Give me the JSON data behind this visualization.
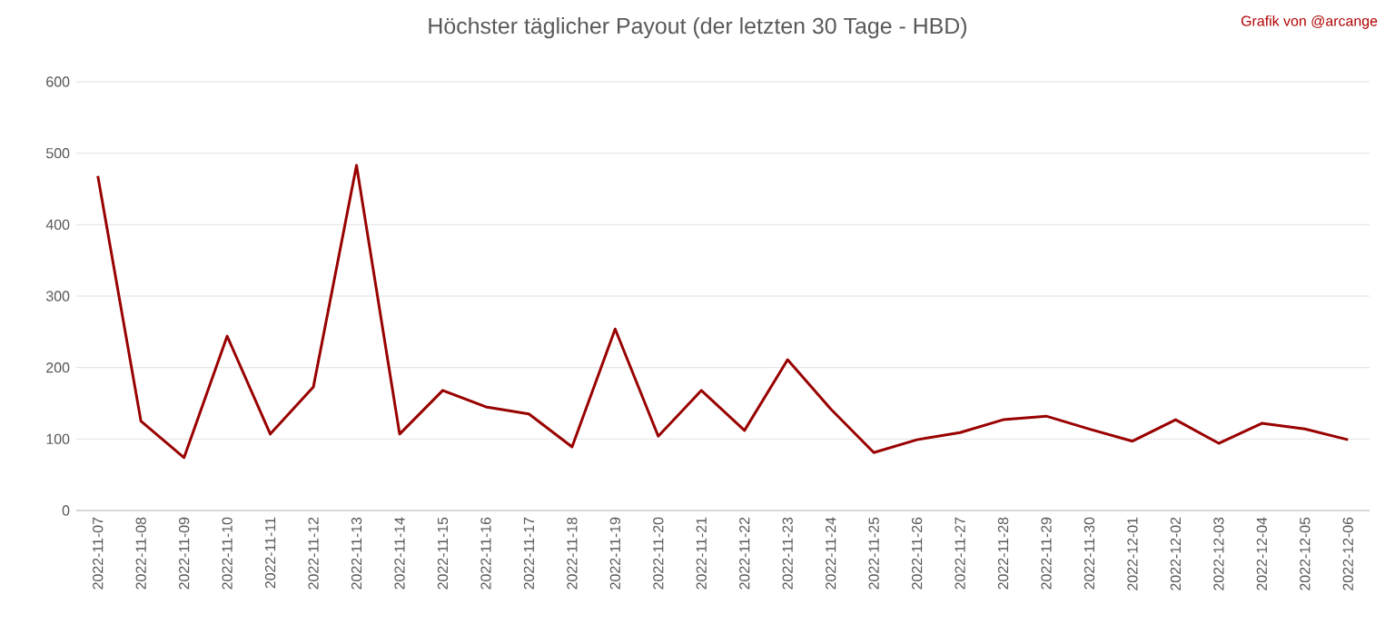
{
  "chart_data": {
    "type": "line",
    "title": "Höchster täglicher Payout (der letzten 30 Tage - HBD)",
    "annotations": [
      "Grafik von @arcange"
    ],
    "categories": [
      "2022-11-07",
      "2022-11-08",
      "2022-11-09",
      "2022-11-10",
      "2022-11-11",
      "2022-11-12",
      "2022-11-13",
      "2022-11-14",
      "2022-11-15",
      "2022-11-16",
      "2022-11-17",
      "2022-11-18",
      "2022-11-19",
      "2022-11-20",
      "2022-11-21",
      "2022-11-22",
      "2022-11-23",
      "2022-11-24",
      "2022-11-25",
      "2022-11-26",
      "2022-11-27",
      "2022-11-28",
      "2022-11-29",
      "2022-11-30",
      "2022-12-01",
      "2022-12-02",
      "2022-12-03",
      "2022-12-04",
      "2022-12-05",
      "2022-12-06"
    ],
    "series": [
      {
        "color": "#990000",
        "values": [
          468,
          125,
          74,
          244,
          107,
          173,
          483,
          107,
          168,
          145,
          135,
          89,
          254,
          104,
          168,
          112,
          211,
          142,
          81,
          99,
          109,
          127,
          132,
          114,
          97,
          127,
          94,
          122,
          114,
          99
        ]
      }
    ],
    "ylim": [
      0,
      600
    ],
    "yticks": [
      0,
      100,
      200,
      300,
      400,
      500,
      600
    ],
    "grid": "y"
  }
}
